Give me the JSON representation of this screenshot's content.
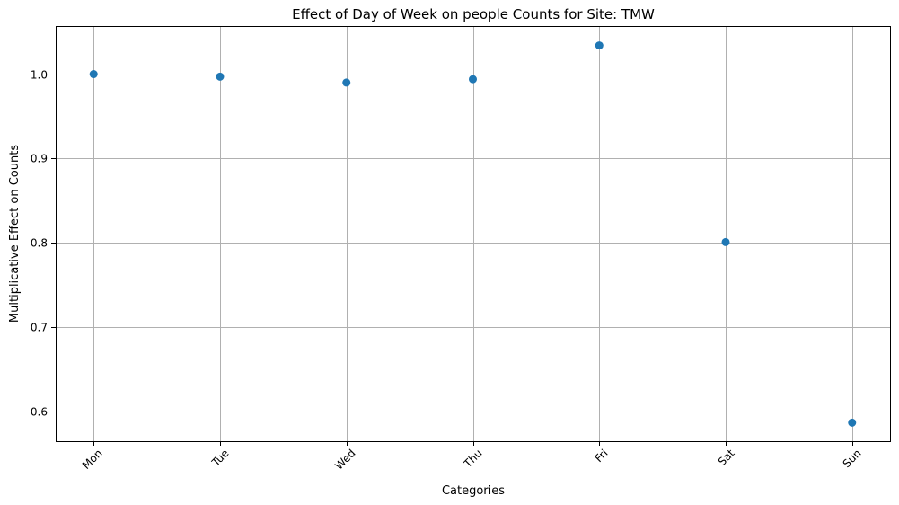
{
  "chart_data": {
    "type": "scatter",
    "title": "Effect of Day of Week on people Counts for Site: TMW",
    "xlabel": "Categories",
    "ylabel": "Multiplicative Effect on Counts",
    "categories": [
      "Mon",
      "Tue",
      "Wed",
      "Thu",
      "Fri",
      "Sat",
      "Sun"
    ],
    "series": [
      {
        "values": [
          1.0,
          0.997,
          0.99,
          0.994,
          1.034,
          0.801,
          0.587
        ]
      }
    ],
    "ylim": [
      0.565,
      1.057
    ],
    "yticks": [
      0.6,
      0.7,
      0.8,
      0.9,
      1.0
    ],
    "ytick_labels": [
      "0.6",
      "0.7",
      "0.8",
      "0.9",
      "1.0"
    ],
    "grid": true,
    "marker_color": "#1f77b4",
    "xtick_rotation_deg": 45
  }
}
